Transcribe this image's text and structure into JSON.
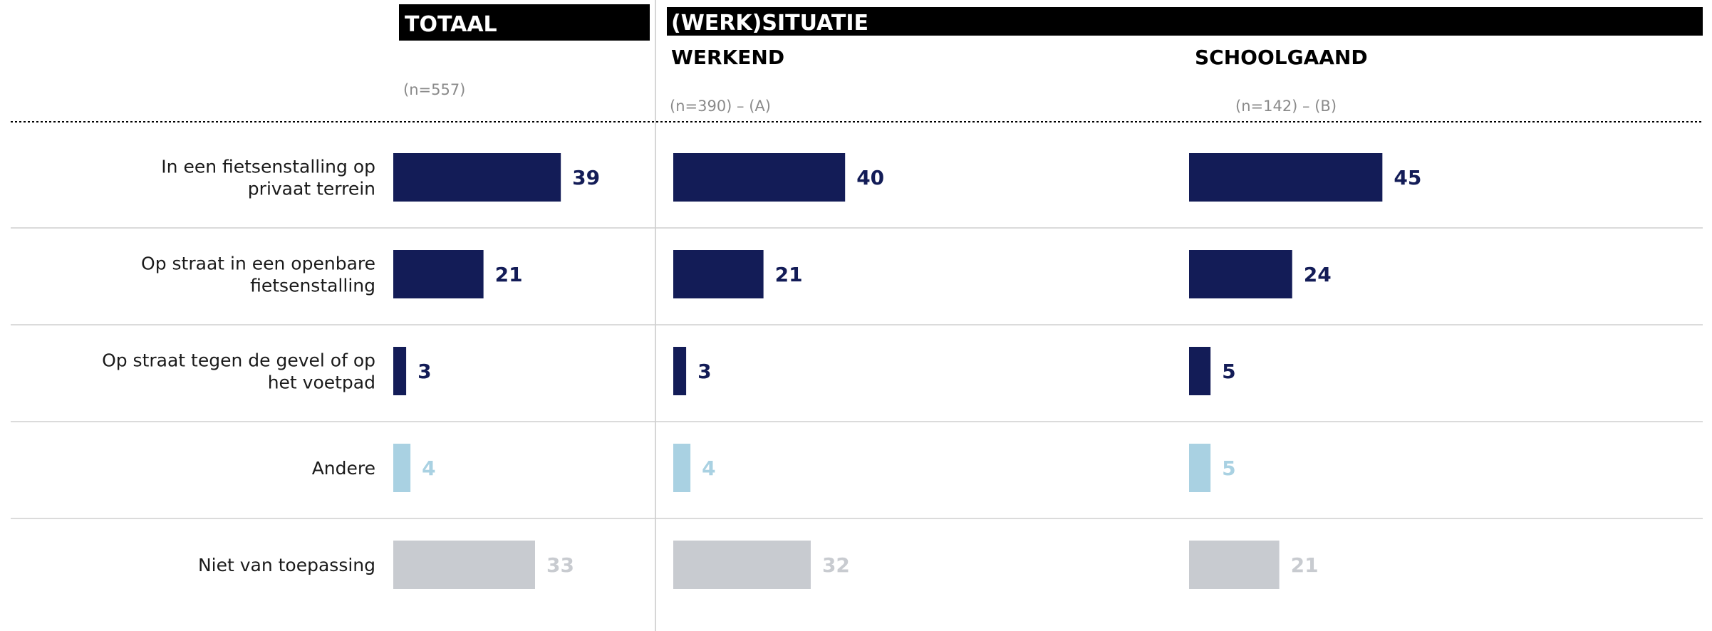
{
  "header": {
    "totaal_title": "TOTAAL",
    "group_title": "(WERK)SITUATIE",
    "totaal_sample": "(n=557)"
  },
  "colors": {
    "navy": "#131c57",
    "lightblue": "#a9d1e2",
    "grey": "#c8cbd0",
    "header_bg": "#000000"
  },
  "chart_data": {
    "type": "bar",
    "orientation": "horizontal",
    "categories": [
      "In een fietsenstalling op privaat terrein",
      "Op straat in een openbare fietsenstalling",
      "Op straat tegen de gevel of op het voetpad",
      "Andere",
      "Niet van toepassing"
    ],
    "category_colors": [
      "#131c57",
      "#131c57",
      "#131c57",
      "#a9d1e2",
      "#c8cbd0"
    ],
    "series": [
      {
        "name": "TOTAAL",
        "sample": "(n=557)",
        "values": [
          39,
          21,
          3,
          4,
          33
        ]
      },
      {
        "name": "WERKEND",
        "sample": "(n=390) – (A)",
        "values": [
          40,
          21,
          3,
          4,
          32
        ]
      },
      {
        "name": "SCHOOLGAAND",
        "sample": "(n=142) – (B)",
        "values": [
          45,
          24,
          5,
          5,
          21
        ]
      }
    ],
    "grid": false,
    "legend": "none"
  }
}
